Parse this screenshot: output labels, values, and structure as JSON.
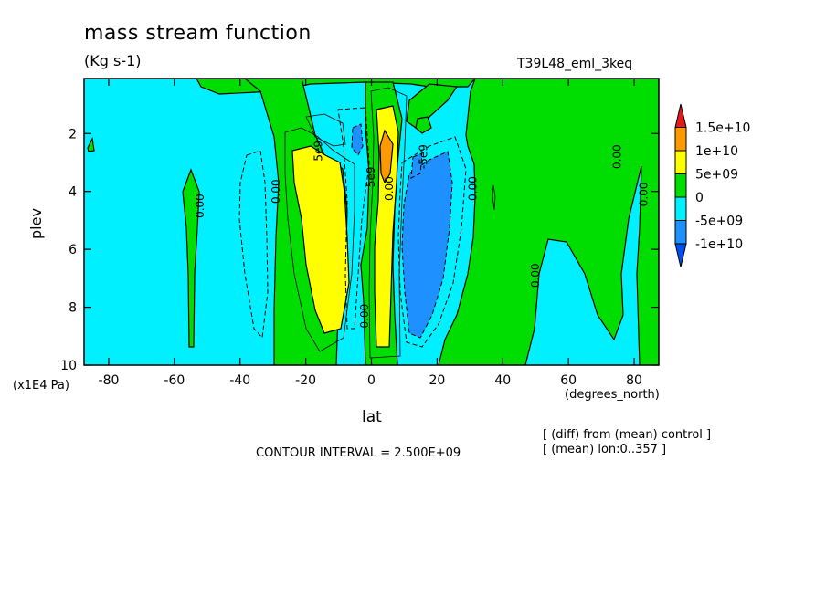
{
  "header": {
    "title": "mass stream function",
    "units": "(Kg s-1)",
    "dataset": "T39L48_eml_3keq"
  },
  "footer": {
    "contour_interval": "CONTOUR INTERVAL = 2.500E+09",
    "note_diff": "[ (diff) from (mean) control ]",
    "note_mean": "[ (mean) lon:0..357 ]"
  },
  "chart_data": {
    "type": "heatmap",
    "title": "mass stream function",
    "subtitle": "(Kg s-1)",
    "xlabel": "lat",
    "xunits": "(degrees_north)",
    "ylabel": "plev",
    "yunits": "(x1E4 Pa)",
    "xlim": [
      -87.5,
      87.5
    ],
    "ylim": [
      10,
      0.1
    ],
    "x_ticks": [
      -80,
      -60,
      -40,
      -20,
      0,
      20,
      40,
      60,
      80
    ],
    "y_ticks": [
      2,
      4,
      6,
      8,
      10
    ],
    "contour_interval": 2500000000.0,
    "colorbar": {
      "levels": [
        "1.5e+10",
        "1e+10",
        "5e+09",
        "0",
        "-5e+09",
        "-1e+10"
      ],
      "colors": [
        "#e31a1c",
        "#ff9900",
        "#ffff00",
        "#00dd00",
        "#00f0ff",
        "#1e90ff",
        "#0050f0"
      ]
    },
    "contour_labels": [
      {
        "text": "0.00",
        "lat": -28,
        "plev": 4.0
      },
      {
        "text": "0.00",
        "lat": -51,
        "plev": 4.5
      },
      {
        "text": "5e9",
        "lat": -15,
        "plev": 2.6
      },
      {
        "text": "5e9",
        "lat": 1,
        "plev": 3.5
      },
      {
        "text": "0.00",
        "lat": 6.5,
        "plev": 3.9
      },
      {
        "text": "-5e9",
        "lat": 17,
        "plev": 2.8
      },
      {
        "text": "0.00",
        "lat": 32,
        "plev": 3.9
      },
      {
        "text": "0.00",
        "lat": 51,
        "plev": 6.9
      },
      {
        "text": "0.00",
        "lat": 76,
        "plev": 2.8
      },
      {
        "text": "0.00",
        "lat": 84,
        "plev": 4.1
      },
      {
        "text": "0.00",
        "lat": -1,
        "plev": 8.3
      }
    ],
    "features": [
      {
        "sign": "positive",
        "peak": "1e+10",
        "lat": -13,
        "plev": 4.5
      },
      {
        "sign": "positive",
        "peak": "1.25e+10",
        "lat": 5,
        "plev": 3.0
      },
      {
        "sign": "negative",
        "peak": "-1e+10",
        "lat": 15,
        "plev": 5.5
      },
      {
        "sign": "negative",
        "peak": "-7.5e+09",
        "lat": -4,
        "plev": 2.3
      }
    ]
  }
}
